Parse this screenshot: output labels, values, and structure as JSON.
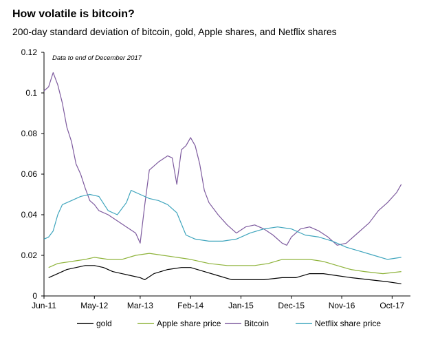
{
  "chart_data": {
    "type": "line",
    "title": "How volatile is bitcoin?",
    "subtitle": "200-day standard deviation of bitcoin, gold, Apple shares, and Netflix shares",
    "annotation": "Data to end of December 2017",
    "xlabel": "",
    "ylabel": "",
    "ylim": [
      0,
      0.12
    ],
    "yticks": [
      "0",
      "0.02",
      "0.04",
      "0.06",
      "0.08",
      "0.1",
      "0.12"
    ],
    "xlim": [
      "2011-06",
      "2018-02"
    ],
    "xticks": [
      {
        "label": "Jun-11",
        "date": "2011-06"
      },
      {
        "label": "May-12",
        "date": "2012-05"
      },
      {
        "label": "Mar-13",
        "date": "2013-03"
      },
      {
        "label": "Feb-14",
        "date": "2014-02"
      },
      {
        "label": "Jan-15",
        "date": "2015-01"
      },
      {
        "label": "Dec-15",
        "date": "2015-12"
      },
      {
        "label": "Nov-16",
        "date": "2016-11"
      },
      {
        "label": "Oct-17",
        "date": "2017-10"
      }
    ],
    "grid": false,
    "legend_position": "bottom",
    "series": [
      {
        "name": "gold",
        "color": "#000000",
        "points": [
          [
            "2011-07",
            0.009
          ],
          [
            "2011-09",
            0.011
          ],
          [
            "2011-11",
            0.013
          ],
          [
            "2012-01",
            0.014
          ],
          [
            "2012-03",
            0.015
          ],
          [
            "2012-05",
            0.015
          ],
          [
            "2012-07",
            0.014
          ],
          [
            "2012-09",
            0.012
          ],
          [
            "2012-11",
            0.011
          ],
          [
            "2013-01",
            0.01
          ],
          [
            "2013-03",
            0.009
          ],
          [
            "2013-04",
            0.008
          ],
          [
            "2013-06",
            0.011
          ],
          [
            "2013-09",
            0.013
          ],
          [
            "2013-12",
            0.014
          ],
          [
            "2014-02",
            0.014
          ],
          [
            "2014-05",
            0.012
          ],
          [
            "2014-08",
            0.01
          ],
          [
            "2014-11",
            0.008
          ],
          [
            "2015-02",
            0.008
          ],
          [
            "2015-06",
            0.008
          ],
          [
            "2015-10",
            0.009
          ],
          [
            "2016-01",
            0.009
          ],
          [
            "2016-04",
            0.011
          ],
          [
            "2016-07",
            0.011
          ],
          [
            "2016-10",
            0.01
          ],
          [
            "2017-01",
            0.009
          ],
          [
            "2017-05",
            0.008
          ],
          [
            "2017-09",
            0.007
          ],
          [
            "2017-12",
            0.006
          ]
        ]
      },
      {
        "name": "Apple share price",
        "color": "#8eb33a",
        "points": [
          [
            "2011-07",
            0.014
          ],
          [
            "2011-09",
            0.016
          ],
          [
            "2011-12",
            0.017
          ],
          [
            "2012-03",
            0.018
          ],
          [
            "2012-05",
            0.019
          ],
          [
            "2012-08",
            0.018
          ],
          [
            "2012-11",
            0.018
          ],
          [
            "2013-02",
            0.02
          ],
          [
            "2013-05",
            0.021
          ],
          [
            "2013-08",
            0.02
          ],
          [
            "2013-11",
            0.019
          ],
          [
            "2014-02",
            0.018
          ],
          [
            "2014-06",
            0.016
          ],
          [
            "2014-10",
            0.015
          ],
          [
            "2015-01",
            0.015
          ],
          [
            "2015-04",
            0.015
          ],
          [
            "2015-07",
            0.016
          ],
          [
            "2015-10",
            0.018
          ],
          [
            "2016-01",
            0.018
          ],
          [
            "2016-04",
            0.018
          ],
          [
            "2016-07",
            0.017
          ],
          [
            "2016-10",
            0.015
          ],
          [
            "2017-01",
            0.013
          ],
          [
            "2017-04",
            0.012
          ],
          [
            "2017-08",
            0.011
          ],
          [
            "2017-12",
            0.012
          ]
        ]
      },
      {
        "name": "Bitcoin",
        "color": "#7d5a9e",
        "points": [
          [
            "2011-06",
            0.101
          ],
          [
            "2011-07",
            0.103
          ],
          [
            "2011-08",
            0.11
          ],
          [
            "2011-09",
            0.104
          ],
          [
            "2011-10",
            0.095
          ],
          [
            "2011-11",
            0.083
          ],
          [
            "2011-12",
            0.076
          ],
          [
            "2012-01",
            0.065
          ],
          [
            "2012-02",
            0.06
          ],
          [
            "2012-03",
            0.053
          ],
          [
            "2012-04",
            0.047
          ],
          [
            "2012-05",
            0.045
          ],
          [
            "2012-06",
            0.042
          ],
          [
            "2012-08",
            0.04
          ],
          [
            "2012-10",
            0.037
          ],
          [
            "2012-12",
            0.034
          ],
          [
            "2013-02",
            0.031
          ],
          [
            "2013-03",
            0.026
          ],
          [
            "2013-04",
            0.045
          ],
          [
            "2013-05",
            0.062
          ],
          [
            "2013-07",
            0.066
          ],
          [
            "2013-09",
            0.069
          ],
          [
            "2013-10",
            0.068
          ],
          [
            "2013-11",
            0.055
          ],
          [
            "2013-12",
            0.072
          ],
          [
            "2014-01",
            0.074
          ],
          [
            "2014-02",
            0.078
          ],
          [
            "2014-03",
            0.074
          ],
          [
            "2014-04",
            0.065
          ],
          [
            "2014-05",
            0.052
          ],
          [
            "2014-06",
            0.046
          ],
          [
            "2014-08",
            0.04
          ],
          [
            "2014-10",
            0.035
          ],
          [
            "2014-12",
            0.031
          ],
          [
            "2015-02",
            0.034
          ],
          [
            "2015-04",
            0.035
          ],
          [
            "2015-06",
            0.033
          ],
          [
            "2015-08",
            0.03
          ],
          [
            "2015-10",
            0.026
          ],
          [
            "2015-11",
            0.025
          ],
          [
            "2015-12",
            0.029
          ],
          [
            "2016-02",
            0.033
          ],
          [
            "2016-04",
            0.034
          ],
          [
            "2016-06",
            0.032
          ],
          [
            "2016-08",
            0.029
          ],
          [
            "2016-10",
            0.025
          ],
          [
            "2016-12",
            0.026
          ],
          [
            "2017-02",
            0.03
          ],
          [
            "2017-05",
            0.036
          ],
          [
            "2017-07",
            0.042
          ],
          [
            "2017-09",
            0.046
          ],
          [
            "2017-11",
            0.051
          ],
          [
            "2017-12",
            0.055
          ]
        ]
      },
      {
        "name": "Netflix share price",
        "color": "#3fa5bd",
        "points": [
          [
            "2011-06",
            0.028
          ],
          [
            "2011-07",
            0.029
          ],
          [
            "2011-08",
            0.032
          ],
          [
            "2011-09",
            0.04
          ],
          [
            "2011-10",
            0.045
          ],
          [
            "2011-12",
            0.047
          ],
          [
            "2012-02",
            0.049
          ],
          [
            "2012-04",
            0.05
          ],
          [
            "2012-06",
            0.049
          ],
          [
            "2012-08",
            0.042
          ],
          [
            "2012-10",
            0.04
          ],
          [
            "2012-12",
            0.046
          ],
          [
            "2013-01",
            0.052
          ],
          [
            "2013-03",
            0.05
          ],
          [
            "2013-05",
            0.048
          ],
          [
            "2013-07",
            0.047
          ],
          [
            "2013-09",
            0.045
          ],
          [
            "2013-11",
            0.041
          ],
          [
            "2014-01",
            0.03
          ],
          [
            "2014-03",
            0.028
          ],
          [
            "2014-06",
            0.027
          ],
          [
            "2014-09",
            0.027
          ],
          [
            "2014-12",
            0.028
          ],
          [
            "2015-03",
            0.031
          ],
          [
            "2015-06",
            0.033
          ],
          [
            "2015-09",
            0.034
          ],
          [
            "2015-12",
            0.033
          ],
          [
            "2016-03",
            0.03
          ],
          [
            "2016-06",
            0.029
          ],
          [
            "2016-09",
            0.027
          ],
          [
            "2016-12",
            0.024
          ],
          [
            "2017-03",
            0.022
          ],
          [
            "2017-06",
            0.02
          ],
          [
            "2017-09",
            0.018
          ],
          [
            "2017-12",
            0.019
          ]
        ]
      }
    ]
  }
}
